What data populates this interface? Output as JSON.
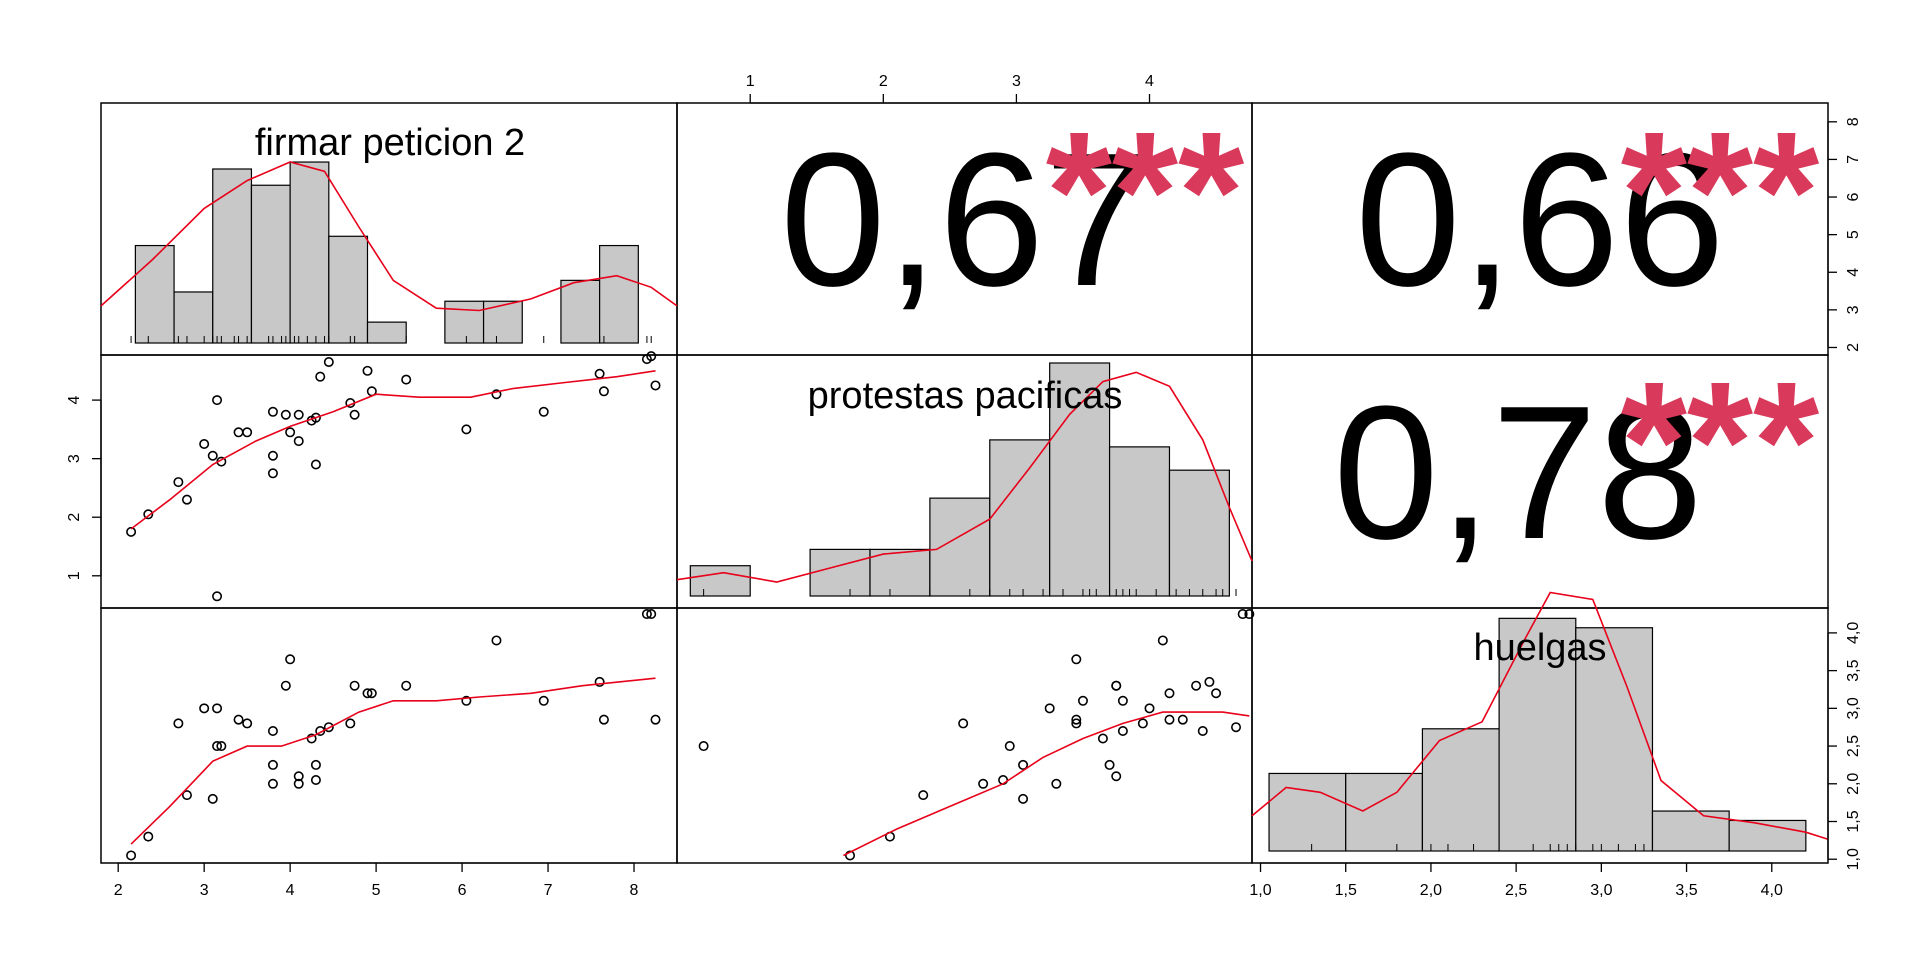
{
  "chart_data": {
    "type": "scatter",
    "colors": {
      "fit": "#e8001a",
      "stars": "#d9395a",
      "bar_fill": "#c8c8c8",
      "axis": "#000000"
    },
    "variables": [
      "firmar peticion 2",
      "protestas pacificas",
      "huelgas"
    ],
    "correlations": [
      {
        "pair": [
          "firmar peticion 2",
          "protestas pacificas"
        ],
        "text": "0,67",
        "stars": "***"
      },
      {
        "pair": [
          "firmar peticion 2",
          "huelgas"
        ],
        "text": "0,66",
        "stars": "***"
      },
      {
        "pair": [
          "protestas pacificas",
          "huelgas"
        ],
        "text": "0,78",
        "stars": "***"
      }
    ],
    "axes": {
      "firmar_x": {
        "range": [
          1.8,
          8.5
        ],
        "ticks": [
          2,
          3,
          4,
          5,
          6,
          7,
          8
        ],
        "labels": [
          "2",
          "3",
          "4",
          "5",
          "6",
          "7",
          "8"
        ]
      },
      "firmar_y": {
        "range": [
          1.8,
          8.5
        ],
        "ticks": [
          2,
          3,
          4,
          5,
          6,
          7,
          8
        ],
        "labels": [
          "2",
          "3",
          "4",
          "5",
          "6",
          "7",
          "8"
        ]
      },
      "protestas_x": {
        "range": [
          0.45,
          4.77
        ],
        "ticks": [
          1,
          2,
          3,
          4
        ],
        "labels": [
          "1",
          "2",
          "3",
          "4"
        ]
      },
      "protestas_y": {
        "range": [
          0.45,
          4.77
        ],
        "ticks": [
          1,
          2,
          3,
          4
        ],
        "labels": [
          "1",
          "2",
          "3",
          "4"
        ]
      },
      "huelgas_x": {
        "range": [
          0.95,
          4.33
        ],
        "ticks": [
          1.0,
          1.5,
          2.0,
          2.5,
          3.0,
          3.5,
          4.0
        ],
        "labels": [
          "1,0",
          "1,5",
          "2,0",
          "2,5",
          "3,0",
          "3,5",
          "4,0"
        ]
      },
      "huelgas_y": {
        "range": [
          0.95,
          4.33
        ],
        "ticks": [
          1.0,
          1.5,
          2.0,
          2.5,
          3.0,
          3.5,
          4.0
        ],
        "labels": [
          "1,0",
          "1,5",
          "2,0",
          "2,5",
          "3,0",
          "3,5",
          "4,0"
        ]
      }
    },
    "histograms": {
      "firmar": {
        "breaks": [
          2.2,
          2.65,
          3.1,
          3.55,
          4.0,
          4.45,
          4.9,
          5.35,
          5.8,
          6.25,
          6.7,
          7.15,
          7.6,
          8.05
        ],
        "heights": [
          0.42,
          0.22,
          0.75,
          0.68,
          0.78,
          0.46,
          0.09,
          0,
          0.18,
          0.18,
          0,
          0.27,
          0.42
        ]
      },
      "protestas": {
        "breaks": [
          0.55,
          1.0,
          1.45,
          1.9,
          2.35,
          2.8,
          3.25,
          3.7,
          4.15,
          4.6
        ],
        "heights": [
          0.13,
          0,
          0.2,
          0.2,
          0.42,
          0.67,
          1.0,
          0.64,
          0.54
        ]
      },
      "huelgas": {
        "breaks": [
          1.05,
          1.5,
          1.95,
          2.4,
          2.85,
          3.3,
          3.75,
          4.2
        ],
        "heights": [
          0.33,
          0.33,
          0.52,
          0.99,
          0.95,
          0.17,
          0.13
        ]
      }
    },
    "densities": {
      "firmar": [
        [
          1.8,
          0.16
        ],
        [
          2.4,
          0.36
        ],
        [
          3.0,
          0.58
        ],
        [
          3.5,
          0.7
        ],
        [
          4.0,
          0.78
        ],
        [
          4.4,
          0.74
        ],
        [
          4.8,
          0.5
        ],
        [
          5.2,
          0.27
        ],
        [
          5.7,
          0.15
        ],
        [
          6.2,
          0.14
        ],
        [
          6.8,
          0.19
        ],
        [
          7.3,
          0.26
        ],
        [
          7.8,
          0.29
        ],
        [
          8.2,
          0.24
        ],
        [
          8.5,
          0.16
        ]
      ],
      "protestas": [
        [
          0.45,
          0.07
        ],
        [
          0.8,
          0.1
        ],
        [
          1.2,
          0.06
        ],
        [
          1.6,
          0.12
        ],
        [
          2.0,
          0.18
        ],
        [
          2.4,
          0.2
        ],
        [
          2.8,
          0.33
        ],
        [
          3.1,
          0.55
        ],
        [
          3.4,
          0.78
        ],
        [
          3.65,
          0.92
        ],
        [
          3.9,
          0.96
        ],
        [
          4.15,
          0.9
        ],
        [
          4.4,
          0.67
        ],
        [
          4.6,
          0.38
        ],
        [
          4.77,
          0.15
        ]
      ],
      "huelgas": [
        [
          0.95,
          0.15
        ],
        [
          1.15,
          0.27
        ],
        [
          1.35,
          0.25
        ],
        [
          1.6,
          0.17
        ],
        [
          1.8,
          0.25
        ],
        [
          2.05,
          0.47
        ],
        [
          2.3,
          0.55
        ],
        [
          2.55,
          0.9
        ],
        [
          2.7,
          1.1
        ],
        [
          2.95,
          1.07
        ],
        [
          3.15,
          0.7
        ],
        [
          3.35,
          0.3
        ],
        [
          3.6,
          0.15
        ],
        [
          3.9,
          0.12
        ],
        [
          4.2,
          0.08
        ],
        [
          4.33,
          0.05
        ]
      ]
    },
    "rugs": {
      "firmar": [
        2.15,
        2.35,
        2.7,
        2.8,
        3.0,
        3.1,
        3.15,
        3.2,
        3.35,
        3.4,
        3.5,
        3.75,
        3.8,
        3.9,
        3.95,
        4.05,
        4.1,
        4.2,
        4.3,
        4.4,
        4.45,
        4.7,
        4.75,
        4.9,
        5.35,
        6.05,
        6.4,
        6.95,
        7.6,
        7.65,
        8.15,
        8.2
      ],
      "protestas": [
        0.65,
        1.75,
        2.05,
        2.35,
        2.65,
        2.8,
        2.95,
        3.05,
        3.2,
        3.35,
        3.5,
        3.55,
        3.6,
        3.7,
        3.75,
        3.8,
        3.85,
        3.9,
        4.05,
        4.2,
        4.3,
        4.4,
        4.5,
        4.55,
        4.65
      ],
      "huelgas": [
        1.05,
        1.3,
        1.8,
        2.0,
        2.1,
        2.25,
        2.6,
        2.7,
        2.75,
        2.8,
        2.85,
        2.95,
        3.0,
        3.1,
        3.2,
        3.25
      ]
    },
    "points": [
      {
        "f": 2.15,
        "p": 1.75,
        "h": 1.05
      },
      {
        "f": 2.35,
        "p": 2.05,
        "h": 1.3
      },
      {
        "f": 2.7,
        "p": 2.6,
        "h": 2.8
      },
      {
        "f": 2.8,
        "p": 2.3,
        "h": 1.85
      },
      {
        "f": 3.0,
        "p": 3.25,
        "h": 3.0
      },
      {
        "f": 3.1,
        "p": 3.05,
        "h": 1.8
      },
      {
        "f": 3.15,
        "p": 4.0,
        "h": 3.0
      },
      {
        "f": 3.15,
        "p": 0.65,
        "h": 2.5
      },
      {
        "f": 3.2,
        "p": 2.95,
        "h": 2.5
      },
      {
        "f": 3.4,
        "p": 3.45,
        "h": 2.85
      },
      {
        "f": 3.5,
        "p": 3.45,
        "h": 2.8
      },
      {
        "f": 3.8,
        "p": 3.8,
        "h": 2.7
      },
      {
        "f": 3.8,
        "p": 3.05,
        "h": 2.25
      },
      {
        "f": 3.8,
        "p": 2.75,
        "h": 2.0
      },
      {
        "f": 3.95,
        "p": 3.75,
        "h": 3.3
      },
      {
        "f": 4.0,
        "p": 3.45,
        "h": 3.65
      },
      {
        "f": 4.1,
        "p": 3.75,
        "h": 2.1
      },
      {
        "f": 4.1,
        "p": 3.3,
        "h": 2.0
      },
      {
        "f": 4.25,
        "p": 3.65,
        "h": 2.6
      },
      {
        "f": 4.3,
        "p": 3.7,
        "h": 2.25
      },
      {
        "f": 4.3,
        "p": 2.9,
        "h": 2.05
      },
      {
        "f": 4.35,
        "p": 4.4,
        "h": 2.7
      },
      {
        "f": 4.45,
        "p": 4.65,
        "h": 2.75
      },
      {
        "f": 4.7,
        "p": 3.95,
        "h": 2.8
      },
      {
        "f": 4.75,
        "p": 3.75,
        "h": 3.3
      },
      {
        "f": 4.9,
        "p": 4.5,
        "h": 3.2
      },
      {
        "f": 4.95,
        "p": 4.15,
        "h": 3.2
      },
      {
        "f": 5.35,
        "p": 4.35,
        "h": 3.3
      },
      {
        "f": 6.05,
        "p": 3.5,
        "h": 3.1
      },
      {
        "f": 6.4,
        "p": 4.1,
        "h": 3.9
      },
      {
        "f": 6.95,
        "p": 3.8,
        "h": 3.1
      },
      {
        "f": 7.6,
        "p": 4.45,
        "h": 3.35
      },
      {
        "f": 7.65,
        "p": 4.15,
        "h": 2.85
      },
      {
        "f": 8.15,
        "p": 4.7,
        "h": 4.25
      },
      {
        "f": 8.2,
        "p": 4.75,
        "h": 4.25
      },
      {
        "f": 8.25,
        "p": 4.25,
        "h": 2.85
      }
    ],
    "smooths": {
      "p_vs_f": [
        [
          2.15,
          1.8
        ],
        [
          2.6,
          2.3
        ],
        [
          3.1,
          2.9
        ],
        [
          3.6,
          3.3
        ],
        [
          4.0,
          3.55
        ],
        [
          4.5,
          3.8
        ],
        [
          5.0,
          4.1
        ],
        [
          5.5,
          4.05
        ],
        [
          6.1,
          4.05
        ],
        [
          6.6,
          4.2
        ],
        [
          7.2,
          4.3
        ],
        [
          7.8,
          4.4
        ],
        [
          8.25,
          4.5
        ]
      ],
      "h_vs_f": [
        [
          2.15,
          1.2
        ],
        [
          2.6,
          1.7
        ],
        [
          3.1,
          2.3
        ],
        [
          3.5,
          2.5
        ],
        [
          3.9,
          2.5
        ],
        [
          4.3,
          2.65
        ],
        [
          4.8,
          2.95
        ],
        [
          5.2,
          3.1
        ],
        [
          5.7,
          3.1
        ],
        [
          6.2,
          3.15
        ],
        [
          6.8,
          3.2
        ],
        [
          7.4,
          3.3
        ],
        [
          8.25,
          3.4
        ]
      ],
      "h_vs_p": [
        [
          1.7,
          1.05
        ],
        [
          2.1,
          1.4
        ],
        [
          2.5,
          1.7
        ],
        [
          2.9,
          2.0
        ],
        [
          3.2,
          2.35
        ],
        [
          3.5,
          2.6
        ],
        [
          3.8,
          2.8
        ],
        [
          4.1,
          2.95
        ],
        [
          4.3,
          2.95
        ],
        [
          4.55,
          2.95
        ],
        [
          4.75,
          2.9
        ]
      ]
    }
  }
}
